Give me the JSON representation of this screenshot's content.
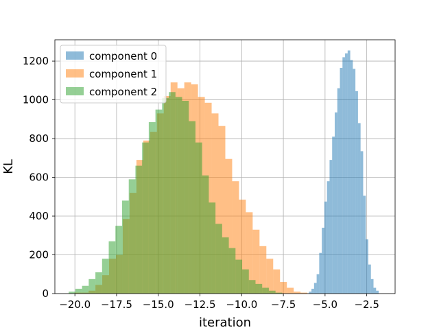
{
  "chart_data": {
    "type": "bar",
    "title": "",
    "xlabel": "iteration",
    "ylabel": "KL",
    "xlim": [
      -21.2,
      -0.8
    ],
    "ylim": [
      0,
      1310
    ],
    "grid": true,
    "legend_position": "top-left",
    "xticks": [
      {
        "value": -20.0,
        "label": "−20.0"
      },
      {
        "value": -17.5,
        "label": "−17.5"
      },
      {
        "value": -15.0,
        "label": "−15.0"
      },
      {
        "value": -12.5,
        "label": "−12.5"
      },
      {
        "value": -10.0,
        "label": "−10.0"
      },
      {
        "value": -7.5,
        "label": "−7.5"
      },
      {
        "value": -5.0,
        "label": "−5.0"
      },
      {
        "value": -2.5,
        "label": "−2.5"
      }
    ],
    "yticks": [
      {
        "value": 0,
        "label": "0"
      },
      {
        "value": 200,
        "label": "200"
      },
      {
        "value": 400,
        "label": "400"
      },
      {
        "value": 600,
        "label": "600"
      },
      {
        "value": 800,
        "label": "800"
      },
      {
        "value": 1000,
        "label": "1000"
      },
      {
        "value": 1200,
        "label": "1200"
      }
    ],
    "series": [
      {
        "name": "component 0",
        "color": "#1f77b4",
        "opacity": 0.5,
        "bin_start": -5.97,
        "bin_width": 0.155,
        "counts": [
          10,
          25,
          55,
          100,
          210,
          340,
          475,
          580,
          690,
          810,
          935,
          1060,
          1165,
          1220,
          1240,
          1255,
          1205,
          1160,
          1045,
          880,
          735,
          505,
          280,
          150,
          75,
          30,
          15
        ]
      },
      {
        "name": "component 1",
        "color": "#ff7f0e",
        "opacity": 0.5,
        "bin_start": -20.0,
        "bin_width": 0.41,
        "counts": [
          5,
          5,
          15,
          45,
          95,
          180,
          200,
          385,
          520,
          690,
          790,
          835,
          930,
          1020,
          1090,
          1060,
          1090,
          1080,
          1015,
          985,
          930,
          865,
          695,
          580,
          485,
          420,
          330,
          245,
          180,
          125,
          60,
          30,
          10,
          5
        ]
      },
      {
        "name": "component 2",
        "color": "#2ca02c",
        "opacity": 0.5,
        "bin_start": -20.37,
        "bin_width": 0.4,
        "counts": [
          10,
          25,
          40,
          75,
          110,
          180,
          270,
          350,
          480,
          590,
          660,
          780,
          885,
          950,
          1010,
          1040,
          1015,
          995,
          890,
          780,
          610,
          470,
          360,
          290,
          235,
          175,
          125,
          70,
          50,
          30,
          15,
          5
        ]
      }
    ]
  }
}
